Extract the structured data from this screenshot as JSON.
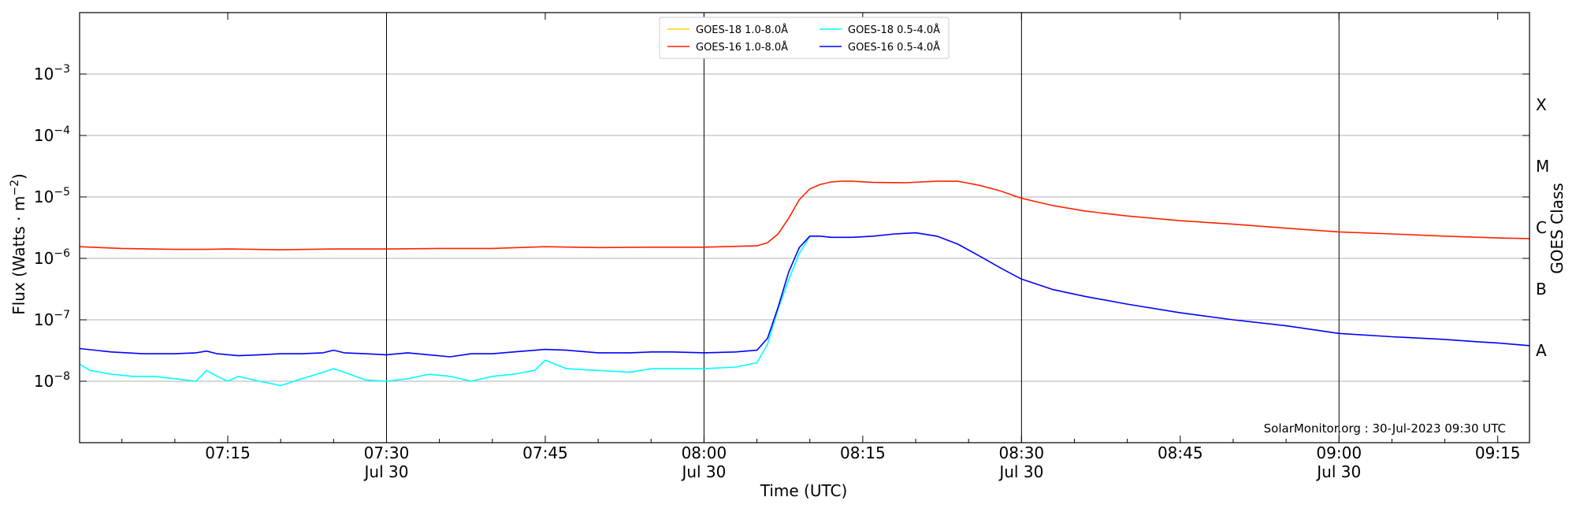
{
  "chart_data": {
    "type": "line",
    "xlabel": "Time (UTC)",
    "ylabel_main": "Flux (Watts · m",
    "ylabel_sup": "−2",
    "ylabel_close": ")",
    "y2label": "GOES Class",
    "yscale": "log",
    "xlim": [
      "07:01",
      "09:18"
    ],
    "ylim": [
      1e-09,
      0.01
    ],
    "grid": "horizontal at y decades",
    "legend_position": "top-center",
    "watermark": "SolarMonitor.org : 30-Jul-2023 09:30 UTC",
    "x_ticks": [
      {
        "t": "07:15",
        "time": "07:15",
        "date": ""
      },
      {
        "t": "07:30",
        "time": "07:30",
        "date": "Jul 30"
      },
      {
        "t": "07:45",
        "time": "07:45",
        "date": ""
      },
      {
        "t": "08:00",
        "time": "08:00",
        "date": "Jul 30"
      },
      {
        "t": "08:15",
        "time": "08:15",
        "date": ""
      },
      {
        "t": "08:30",
        "time": "08:30",
        "date": "Jul 30"
      },
      {
        "t": "08:45",
        "time": "08:45",
        "date": ""
      },
      {
        "t": "09:00",
        "time": "09:00",
        "date": "Jul 30"
      },
      {
        "t": "09:15",
        "time": "09:15",
        "date": ""
      }
    ],
    "vertical_lines": [
      "07:30",
      "08:00",
      "08:30",
      "09:00"
    ],
    "y_ticks": [
      {
        "value": 1e-08,
        "mant": "10",
        "exp": "−8"
      },
      {
        "value": 1e-07,
        "mant": "10",
        "exp": "−7"
      },
      {
        "value": 1e-06,
        "mant": "10",
        "exp": "−6"
      },
      {
        "value": 1e-05,
        "mant": "10",
        "exp": "−5"
      },
      {
        "value": 0.0001,
        "mant": "10",
        "exp": "−4"
      },
      {
        "value": 0.001,
        "mant": "10",
        "exp": "−3"
      }
    ],
    "goes_classes": [
      {
        "label": "A",
        "value": 3.16e-08
      },
      {
        "label": "B",
        "value": 3.16e-07
      },
      {
        "label": "C",
        "value": 3.16e-06
      },
      {
        "label": "M",
        "value": 3.16e-05
      },
      {
        "label": "X",
        "value": 0.000316
      }
    ],
    "series": [
      {
        "name": "GOES-18 1.0-8.0Å",
        "color": "#ffd700",
        "x": [],
        "y": []
      },
      {
        "name": "GOES-16 1.0-8.0Å",
        "color": "#ff2200",
        "x": [
          "07:01",
          "07:05",
          "07:10",
          "07:13",
          "07:15",
          "07:20",
          "07:25",
          "07:30",
          "07:35",
          "07:40",
          "07:45",
          "07:50",
          "07:55",
          "08:00",
          "08:05",
          "08:06",
          "08:07",
          "08:08",
          "08:09",
          "08:10",
          "08:11",
          "08:12",
          "08:13",
          "08:14",
          "08:16",
          "08:19",
          "08:22",
          "08:24",
          "08:26",
          "08:28",
          "08:30",
          "08:33",
          "08:36",
          "08:40",
          "08:45",
          "08:50",
          "08:55",
          "09:00",
          "09:05",
          "09:10",
          "09:15",
          "09:18"
        ],
        "y": [
          1.55e-06,
          1.45e-06,
          1.4e-06,
          1.4e-06,
          1.42e-06,
          1.38e-06,
          1.42e-06,
          1.42e-06,
          1.45e-06,
          1.45e-06,
          1.55e-06,
          1.5e-06,
          1.52e-06,
          1.52e-06,
          1.6e-06,
          1.8e-06,
          2.5e-06,
          4.5e-06,
          9e-06,
          1.35e-05,
          1.6e-05,
          1.75e-05,
          1.8e-05,
          1.8e-05,
          1.72e-05,
          1.7e-05,
          1.8e-05,
          1.8e-05,
          1.55e-05,
          1.25e-05,
          9.5e-06,
          7.2e-06,
          5.9e-06,
          4.9e-06,
          4.1e-06,
          3.6e-06,
          3.1e-06,
          2.7e-06,
          2.5e-06,
          2.3e-06,
          2.15e-06,
          2.1e-06
        ]
      },
      {
        "name": "GOES-18 0.5-4.0Å",
        "color": "#00ffff",
        "x": [
          "07:01",
          "07:02",
          "07:04",
          "07:06",
          "07:08",
          "07:10",
          "07:12",
          "07:13",
          "07:14",
          "07:15",
          "07:16",
          "07:18",
          "07:20",
          "07:22",
          "07:24",
          "07:25",
          "07:26",
          "07:28",
          "07:30",
          "07:32",
          "07:34",
          "07:36",
          "07:38",
          "07:40",
          "07:42",
          "07:44",
          "07:45",
          "07:47",
          "07:50",
          "07:53",
          "07:55",
          "07:57",
          "08:00",
          "08:03",
          "08:05",
          "08:06",
          "08:07",
          "08:08",
          "08:09",
          "08:10"
        ],
        "y": [
          1.9e-08,
          1.5e-08,
          1.3e-08,
          1.2e-08,
          1.2e-08,
          1.1e-08,
          1e-08,
          1.5e-08,
          1.2e-08,
          1e-08,
          1.2e-08,
          1e-08,
          8.5e-09,
          1.1e-08,
          1.4e-08,
          1.6e-08,
          1.4e-08,
          1.05e-08,
          1e-08,
          1.1e-08,
          1.3e-08,
          1.2e-08,
          1e-08,
          1.2e-08,
          1.3e-08,
          1.5e-08,
          2.2e-08,
          1.6e-08,
          1.5e-08,
          1.4e-08,
          1.6e-08,
          1.6e-08,
          1.6e-08,
          1.7e-08,
          2e-08,
          4e-08,
          1.5e-07,
          4.5e-07,
          1.2e-06,
          2.3e-06
        ]
      },
      {
        "name": "GOES-16 0.5-4.0Å",
        "color": "#0000ff",
        "x": [
          "07:01",
          "07:04",
          "07:07",
          "07:10",
          "07:12",
          "07:13",
          "07:14",
          "07:16",
          "07:18",
          "07:20",
          "07:22",
          "07:24",
          "07:25",
          "07:26",
          "07:28",
          "07:30",
          "07:32",
          "07:34",
          "07:36",
          "07:38",
          "07:40",
          "07:42",
          "07:45",
          "07:47",
          "07:50",
          "07:53",
          "07:55",
          "07:57",
          "08:00",
          "08:03",
          "08:05",
          "08:06",
          "08:07",
          "08:08",
          "08:09",
          "08:10",
          "08:11",
          "08:12",
          "08:14",
          "08:16",
          "08:18",
          "08:20",
          "08:22",
          "08:24",
          "08:26",
          "08:28",
          "08:30",
          "08:33",
          "08:36",
          "08:40",
          "08:45",
          "08:50",
          "08:55",
          "09:00",
          "09:05",
          "09:10",
          "09:13",
          "09:15",
          "09:18"
        ],
        "y": [
          3.4e-08,
          3e-08,
          2.8e-08,
          2.8e-08,
          2.9e-08,
          3.1e-08,
          2.8e-08,
          2.6e-08,
          2.7e-08,
          2.8e-08,
          2.8e-08,
          2.9e-08,
          3.2e-08,
          2.9e-08,
          2.8e-08,
          2.7e-08,
          2.9e-08,
          2.7e-08,
          2.5e-08,
          2.8e-08,
          2.8e-08,
          3e-08,
          3.3e-08,
          3.2e-08,
          2.9e-08,
          2.9e-08,
          3e-08,
          3e-08,
          2.9e-08,
          3e-08,
          3.2e-08,
          5e-08,
          1.6e-07,
          6e-07,
          1.5e-06,
          2.3e-06,
          2.3e-06,
          2.2e-06,
          2.2e-06,
          2.3e-06,
          2.5e-06,
          2.6e-06,
          2.3e-06,
          1.7e-06,
          1.1e-06,
          7e-07,
          4.6e-07,
          3.1e-07,
          2.4e-07,
          1.8e-07,
          1.3e-07,
          1e-07,
          8e-08,
          6e-08,
          5.3e-08,
          4.8e-08,
          4.4e-08,
          4.2e-08,
          3.8e-08
        ]
      }
    ]
  }
}
